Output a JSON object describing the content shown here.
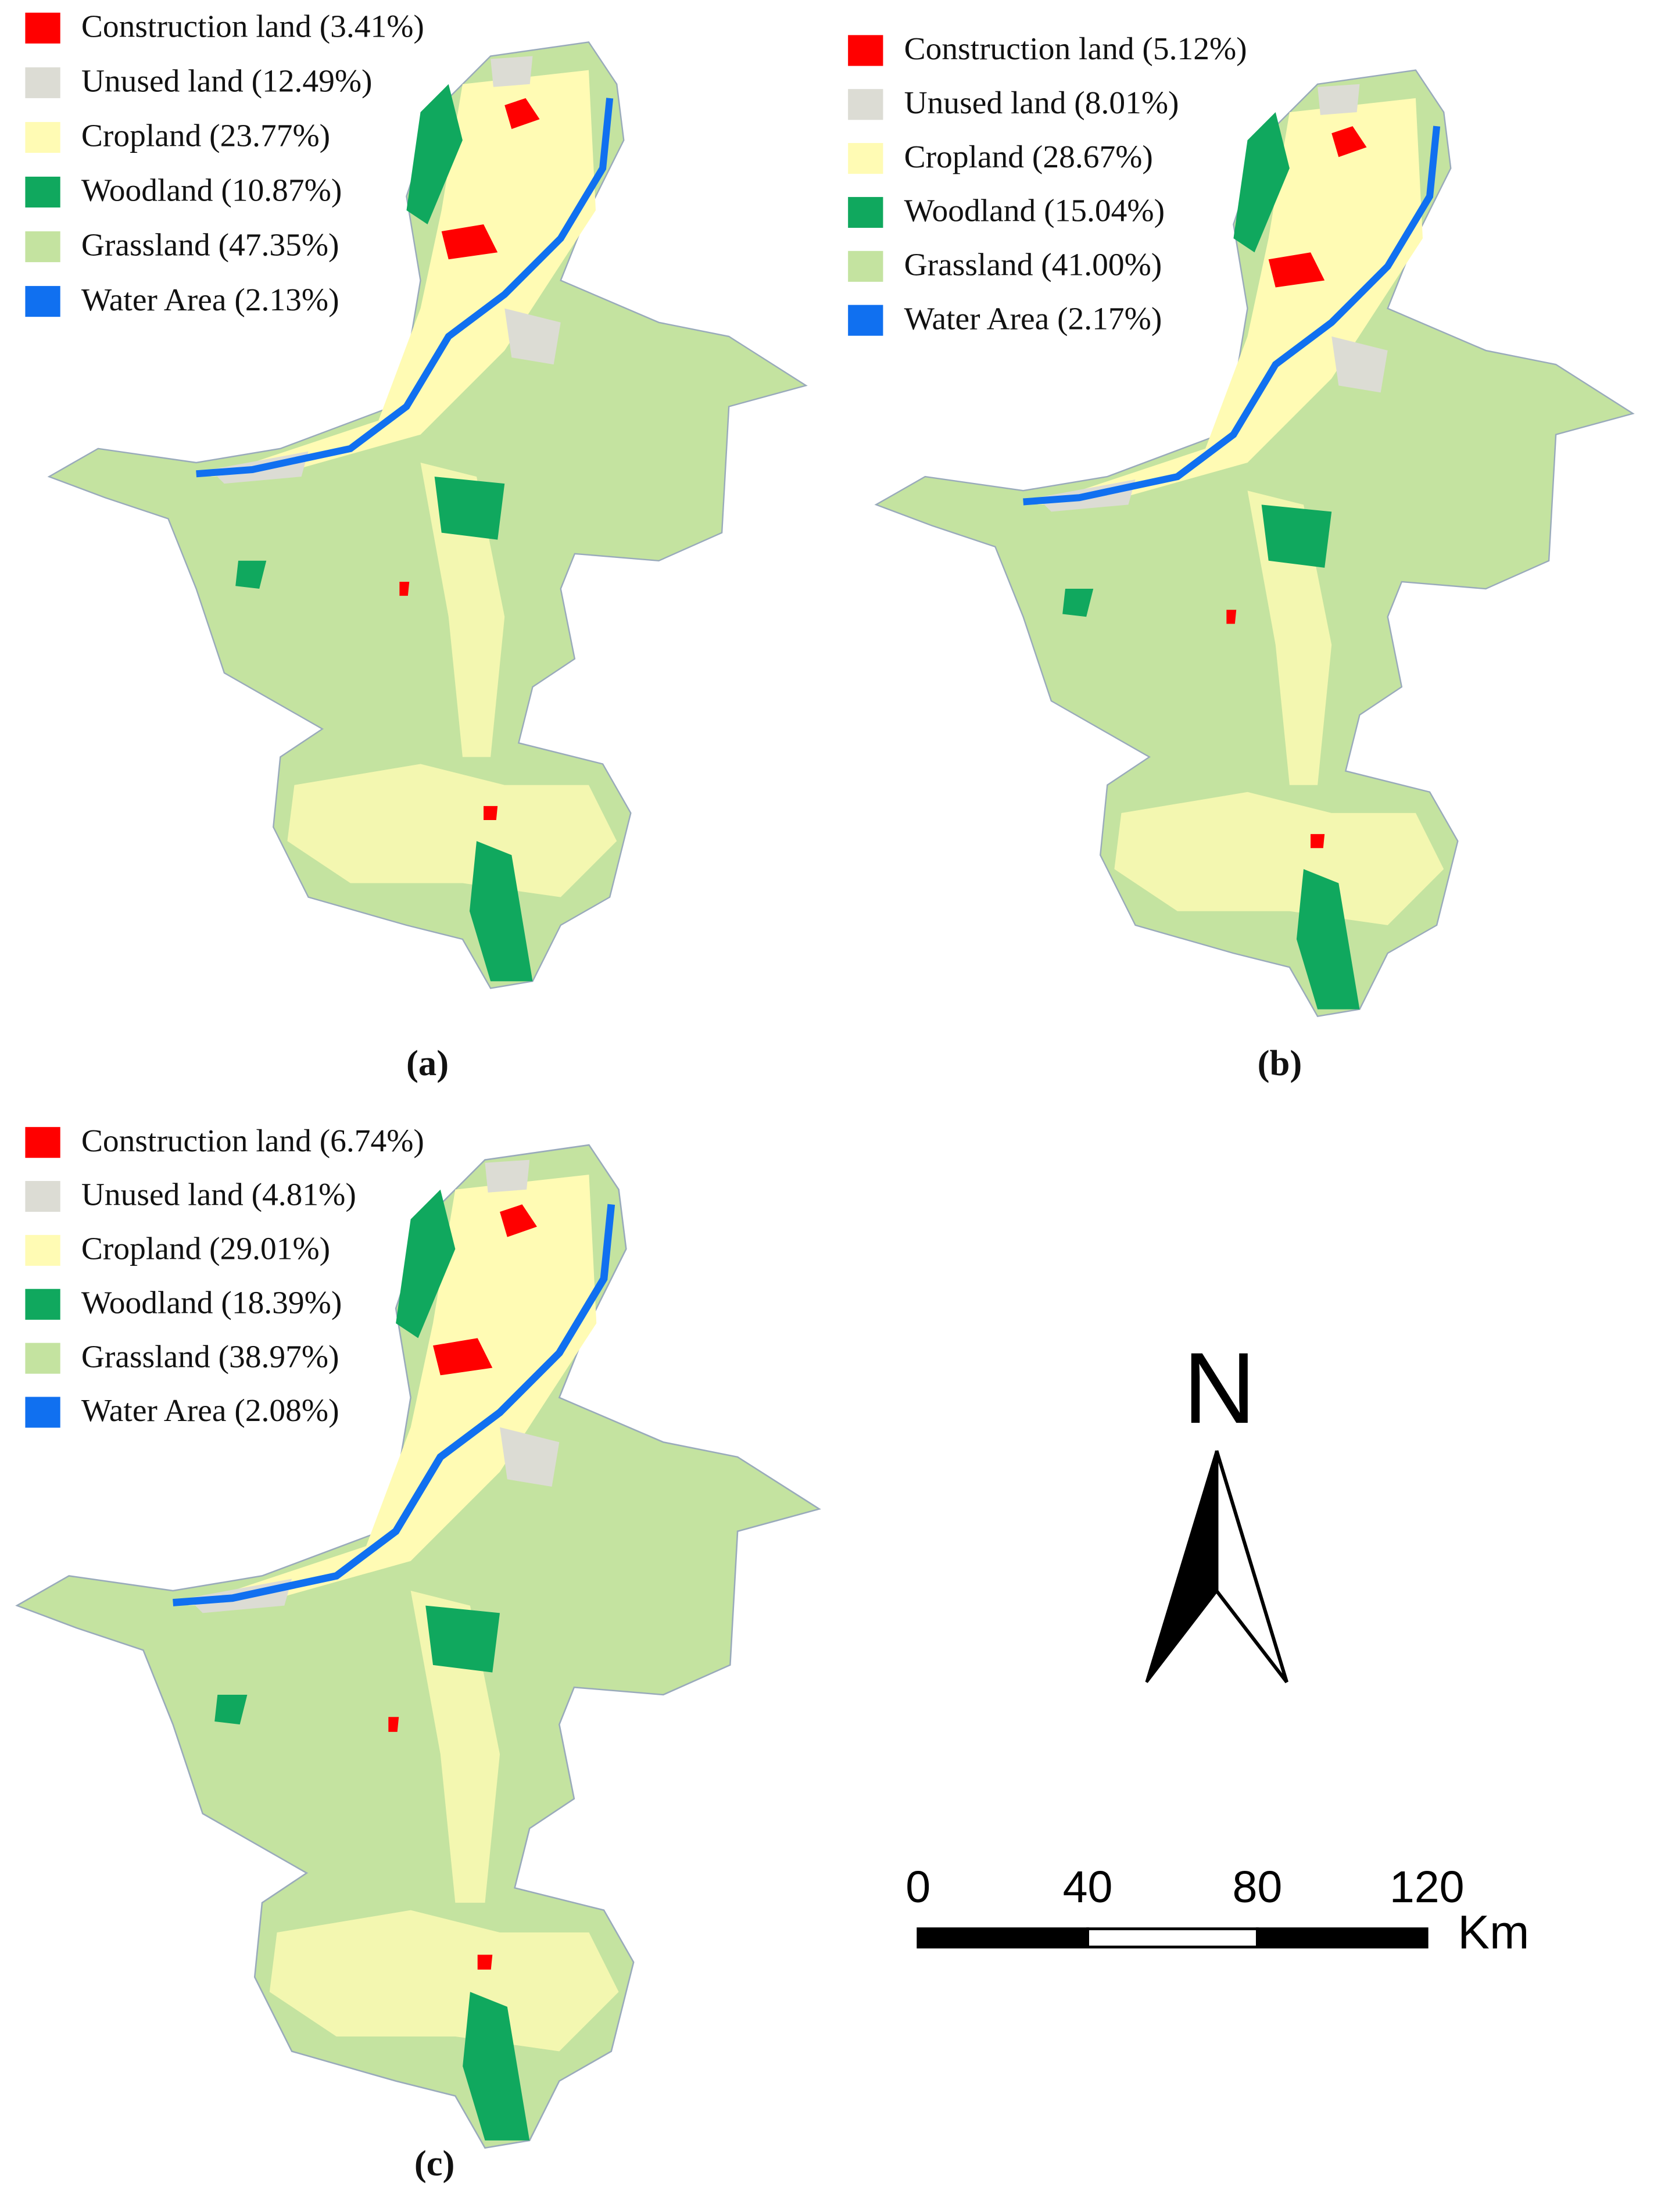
{
  "panels": [
    {
      "label": "(a)",
      "legend": [
        {
          "label": "Construction land (3.41%)",
          "color": "#ff0000"
        },
        {
          "label": "Unused land (12.49%)",
          "color": "#dcdcd4"
        },
        {
          "label": "Cropland (23.77%)",
          "color": "#fffbb4"
        },
        {
          "label": "Woodland (10.87%)",
          "color": "#10a85e"
        },
        {
          "label": "Grassland (47.35%)",
          "color": "#c4e3a0"
        },
        {
          "label": "Water Area (2.13%)",
          "color": "#1070f0"
        }
      ]
    },
    {
      "label": "(b)",
      "legend": [
        {
          "label": "Construction land (5.12%)",
          "color": "#ff0000"
        },
        {
          "label": "Unused land (8.01%)",
          "color": "#dcdcd4"
        },
        {
          "label": "Cropland (28.67%)",
          "color": "#fffbb4"
        },
        {
          "label": "Woodland (15.04%)",
          "color": "#10a85e"
        },
        {
          "label": "Grassland (41.00%)",
          "color": "#c4e3a0"
        },
        {
          "label": "Water Area (2.17%)",
          "color": "#1070f0"
        }
      ]
    },
    {
      "label": "(c)",
      "legend": [
        {
          "label": "Construction land (6.74%)",
          "color": "#ff0000"
        },
        {
          "label": "Unused land (4.81%)",
          "color": "#dcdcd4"
        },
        {
          "label": "Cropland (29.01%)",
          "color": "#fffbb4"
        },
        {
          "label": "Woodland (18.39%)",
          "color": "#10a85e"
        },
        {
          "label": "Grassland (38.97%)",
          "color": "#c4e3a0"
        },
        {
          "label": "Water Area (2.08%)",
          "color": "#1070f0"
        }
      ]
    }
  ],
  "north_arrow": {
    "label": "N"
  },
  "scale_bar": {
    "ticks": [
      0,
      40,
      80,
      120
    ],
    "unit": "Km"
  }
}
